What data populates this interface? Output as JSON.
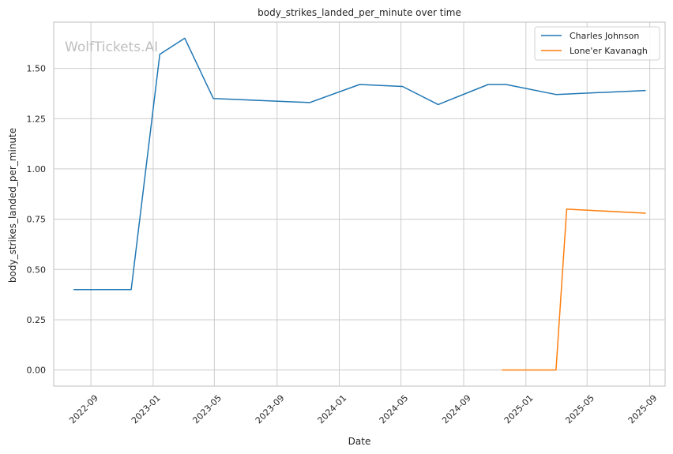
{
  "chart_data": {
    "type": "line",
    "title": "body_strikes_landed_per_minute over time",
    "xlabel": "Date",
    "ylabel": "body_strikes_landed_per_minute",
    "watermark": "WolfTickets.AI",
    "xlim": [
      "2022-06-20",
      "2025-10-01"
    ],
    "ylim": [
      -0.08,
      1.73
    ],
    "x_ticks": [
      "2022-09-01",
      "2023-01-01",
      "2023-05-01",
      "2023-09-01",
      "2024-01-01",
      "2024-05-01",
      "2024-09-01",
      "2025-01-01",
      "2025-05-01",
      "2025-09-01"
    ],
    "x_tick_labels": [
      "2022-09",
      "2023-01",
      "2023-05",
      "2023-09",
      "2024-01",
      "2024-05",
      "2024-09",
      "2025-01",
      "2025-05",
      "2025-09"
    ],
    "y_ticks": [
      0.0,
      0.25,
      0.5,
      0.75,
      1.0,
      1.25,
      1.5
    ],
    "y_tick_labels": [
      "0.00",
      "0.25",
      "0.50",
      "0.75",
      "1.00",
      "1.25",
      "1.50"
    ],
    "grid": true,
    "legend_position": "top-right",
    "series": [
      {
        "name": "Charles Johnson",
        "color": "#1f77b4",
        "points": [
          {
            "x": "2022-07-30",
            "y": 0.4
          },
          {
            "x": "2022-11-19",
            "y": 0.4
          },
          {
            "x": "2023-01-14",
            "y": 1.57
          },
          {
            "x": "2023-03-04",
            "y": 1.65
          },
          {
            "x": "2023-04-29",
            "y": 1.35
          },
          {
            "x": "2023-11-04",
            "y": 1.33
          },
          {
            "x": "2024-02-10",
            "y": 1.42
          },
          {
            "x": "2024-05-04",
            "y": 1.41
          },
          {
            "x": "2024-07-13",
            "y": 1.32
          },
          {
            "x": "2024-10-19",
            "y": 1.42
          },
          {
            "x": "2024-11-23",
            "y": 1.42
          },
          {
            "x": "2025-03-01",
            "y": 1.37
          },
          {
            "x": "2025-08-23",
            "y": 1.39
          }
        ]
      },
      {
        "name": "Lone'er Kavanagh",
        "color": "#ff7f0e",
        "points": [
          {
            "x": "2024-11-16",
            "y": 0.0
          },
          {
            "x": "2025-03-01",
            "y": 0.0
          },
          {
            "x": "2025-03-22",
            "y": 0.8
          },
          {
            "x": "2025-08-23",
            "y": 0.78
          }
        ]
      }
    ]
  }
}
